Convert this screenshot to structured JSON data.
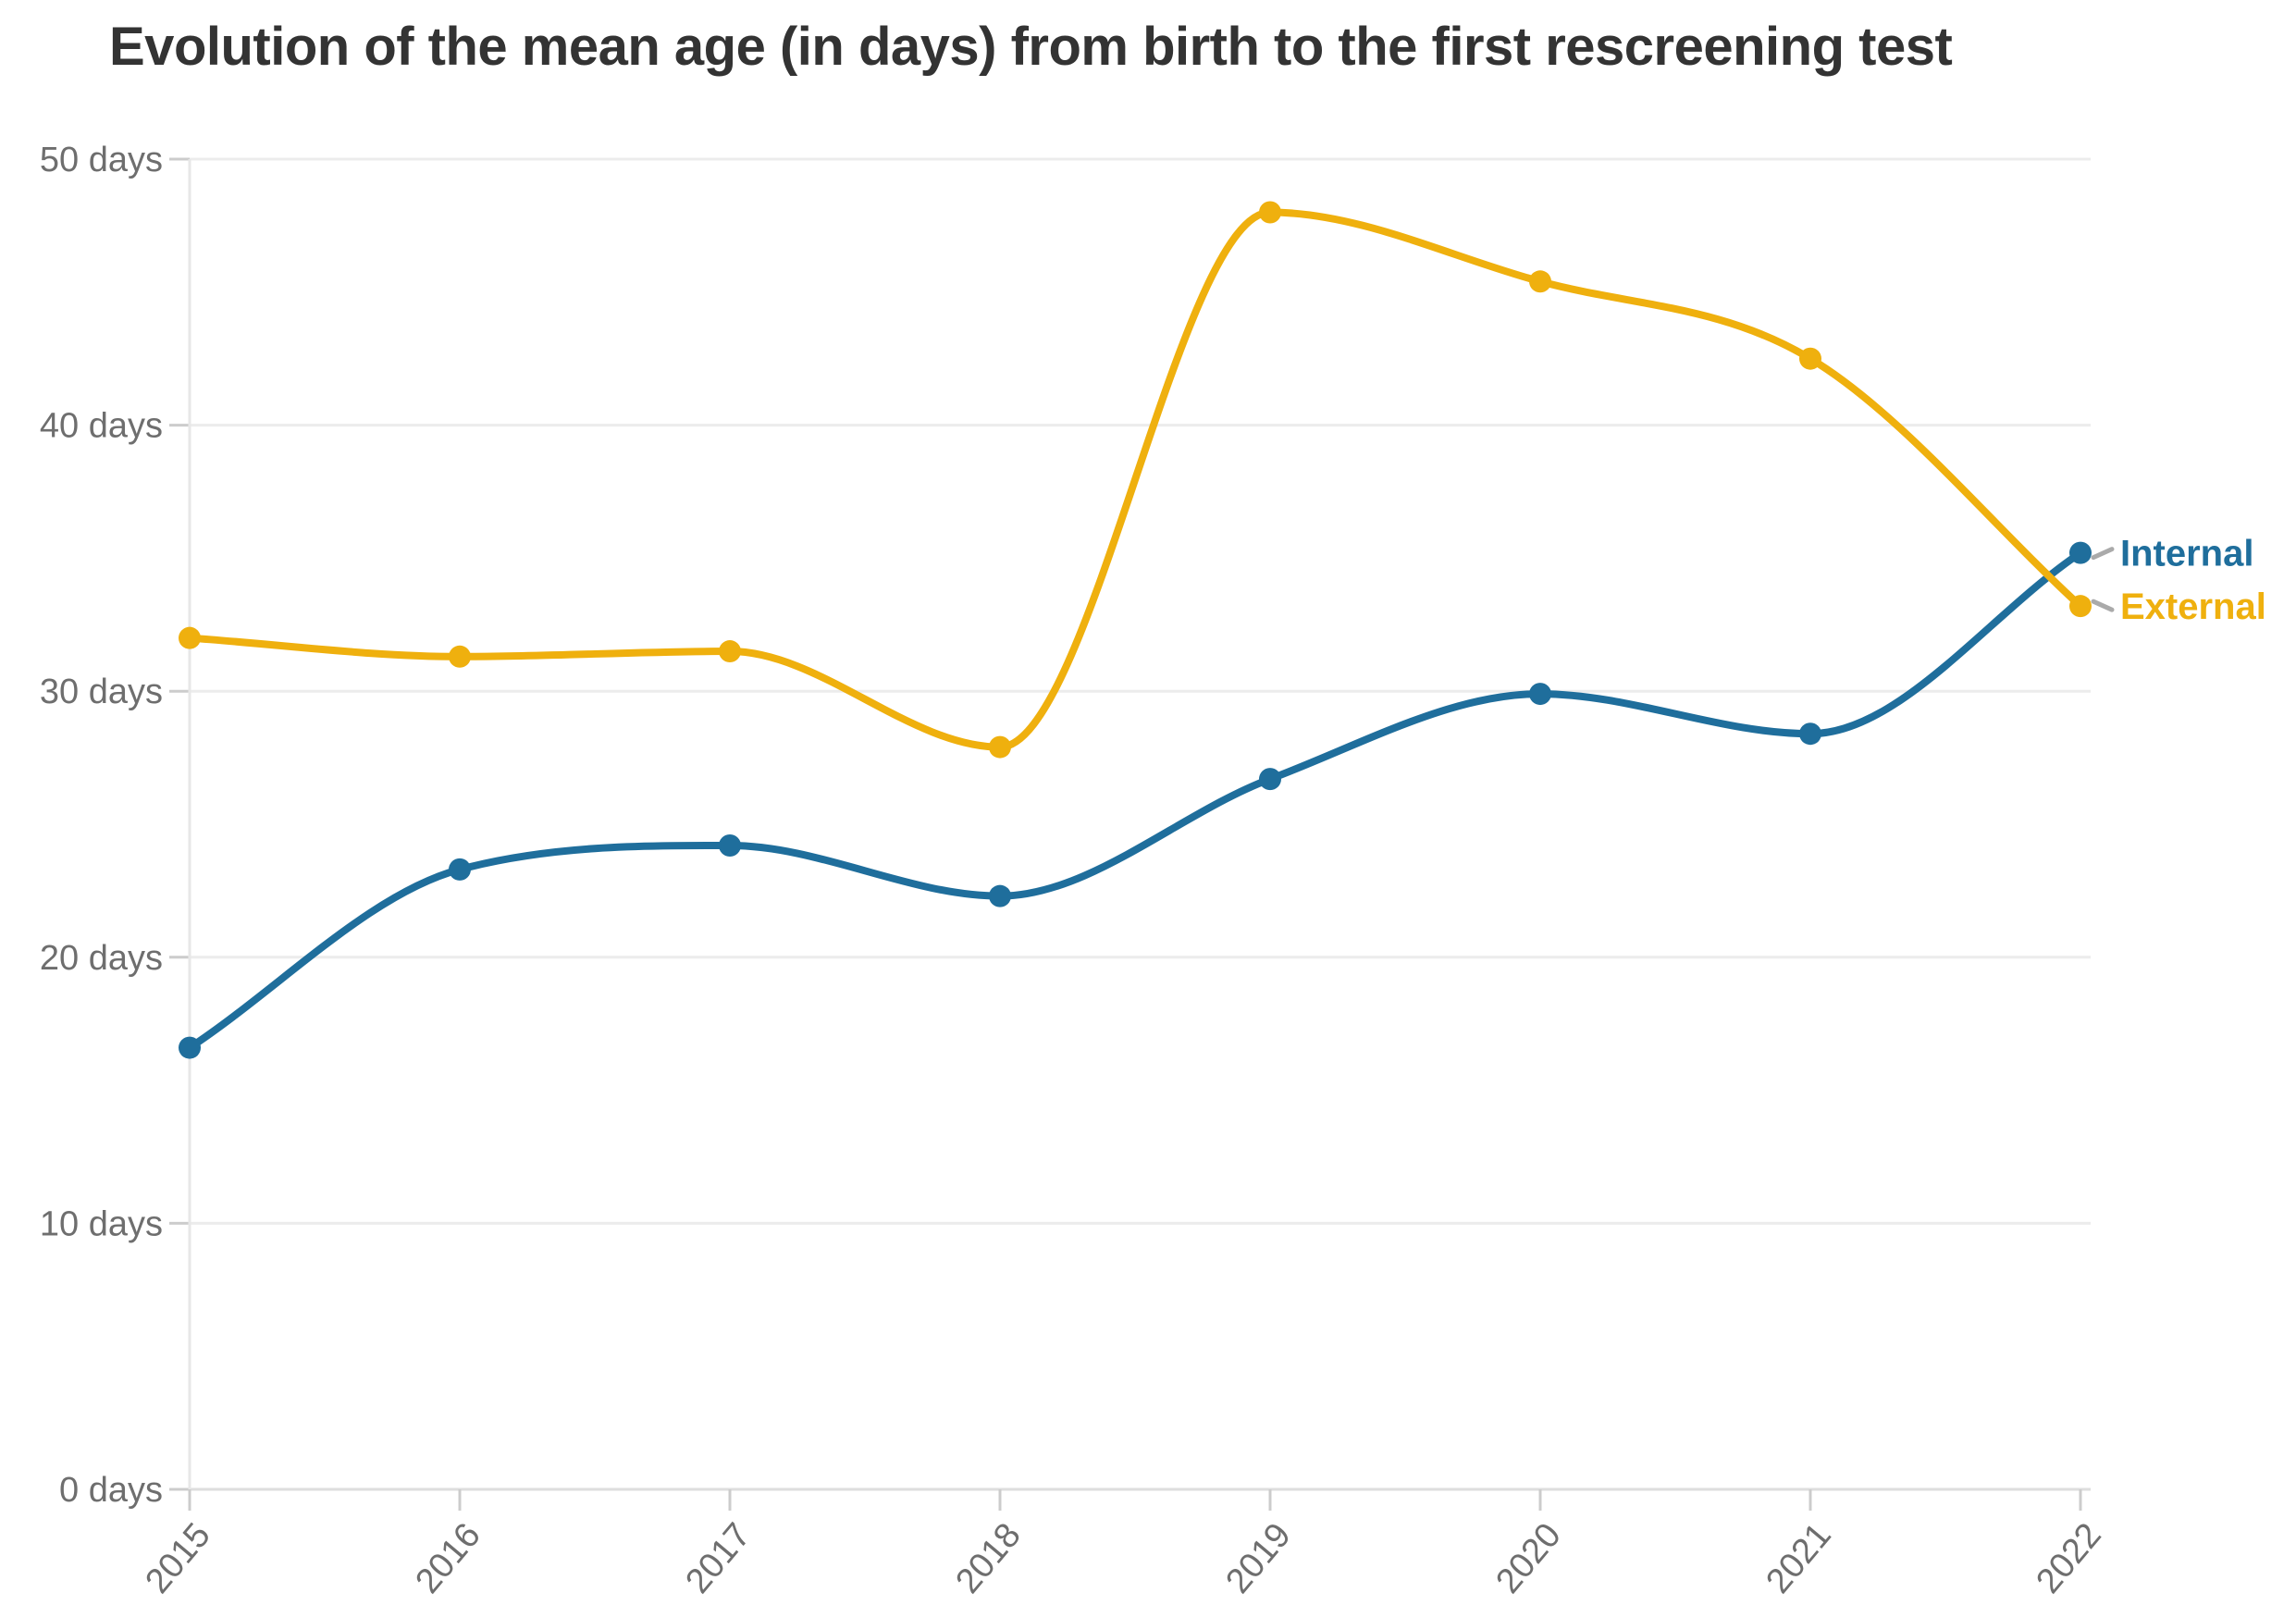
{
  "title": "Evolution of the mean age (in days) from birth to the first rescreening test",
  "colors": {
    "internal": "#1f6e9c",
    "external": "#efb00e",
    "title_text": "#333333",
    "axis_text": "#6e6e6e",
    "gridline": "#ececec",
    "zero_line": "#dedede",
    "tick_mark": "#cccccc",
    "axis_line": "#e7e7e7",
    "connector": "#aaaaaa",
    "background": "#ffffff"
  },
  "chart_data": {
    "type": "line",
    "title": "Evolution of the mean age (in days) from birth to the first rescreening test",
    "x": [
      2015,
      2016,
      2017,
      2018,
      2019,
      2020,
      2021,
      2022
    ],
    "xtick_labels": [
      "2015",
      "2016",
      "2017",
      "2018",
      "2019",
      "2020",
      "2021",
      "2022"
    ],
    "series": [
      {
        "name": "Internal",
        "color_key": "internal",
        "values": [
          16.6,
          23.3,
          24.2,
          22.3,
          26.7,
          29.9,
          28.4,
          35.2
        ]
      },
      {
        "name": "External",
        "color_key": "external",
        "values": [
          32.0,
          31.3,
          31.5,
          27.9,
          48.0,
          45.4,
          42.5,
          33.2
        ]
      }
    ],
    "xlabel": "",
    "ylabel": "",
    "ylim": [
      0,
      50
    ],
    "yticks": [
      0,
      10,
      20,
      30,
      40,
      50
    ],
    "ytick_labels": [
      "0 days",
      "10 days",
      "20 days",
      "30 days",
      "40 days",
      "50 days"
    ],
    "grid": "horizontal",
    "curve": "monotone",
    "markers": true,
    "legend_position": "end-of-line-labels",
    "legend_labels": [
      "Internal",
      "External"
    ]
  }
}
